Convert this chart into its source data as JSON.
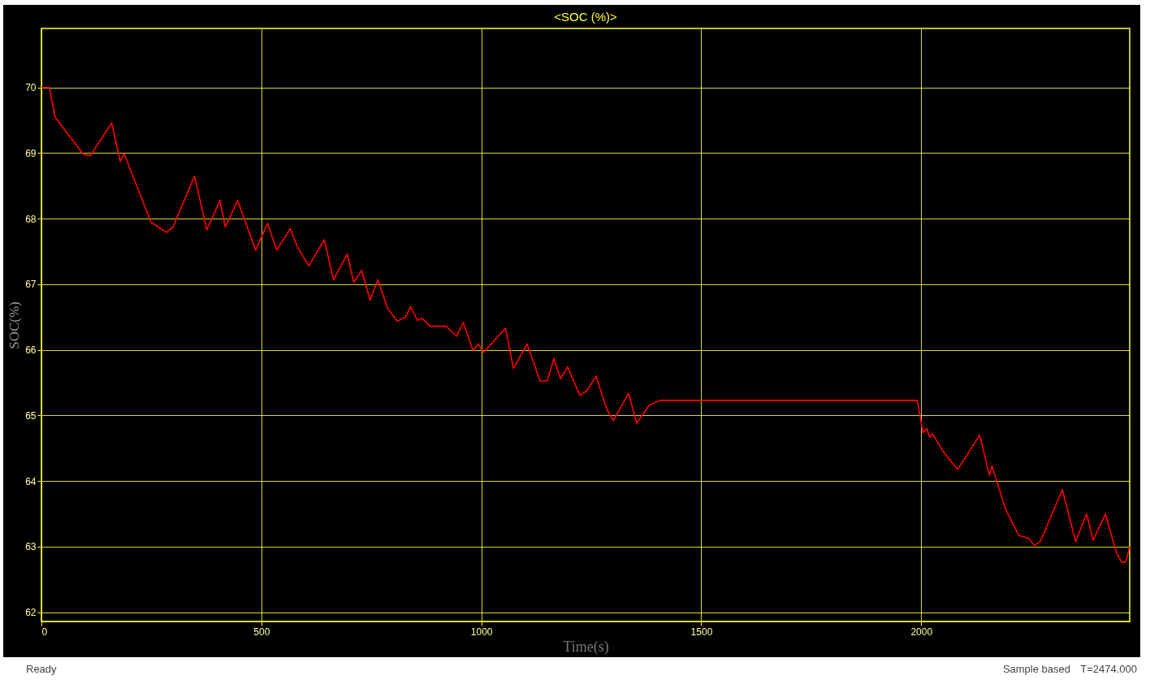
{
  "chart_data": {
    "type": "line",
    "title": "<SOC (%)>",
    "xlabel": "Time(s)",
    "ylabel": "SOC(%)",
    "x": [
      0,
      18,
      31,
      59,
      96,
      111,
      160,
      179,
      188,
      249,
      284,
      299,
      348,
      376,
      406,
      418,
      446,
      487,
      514,
      535,
      566,
      581,
      608,
      643,
      664,
      695,
      710,
      728,
      747,
      765,
      787,
      809,
      828,
      839,
      855,
      866,
      883,
      920,
      944,
      959,
      981,
      993,
      1005,
      1055,
      1073,
      1104,
      1134,
      1150,
      1165,
      1180,
      1196,
      1224,
      1239,
      1261,
      1285,
      1300,
      1335,
      1353,
      1381,
      1405,
      1991,
      2004,
      2013,
      2019,
      2026,
      2050,
      2069,
      2083,
      2133,
      2155,
      2161,
      2192,
      2222,
      2244,
      2257,
      2271,
      2321,
      2351,
      2376,
      2391,
      2419,
      2443,
      2456,
      2465,
      2474
    ],
    "series": [
      {
        "color": "#ff0000",
        "values": [
          70,
          70,
          69.55,
          69.3,
          68.98,
          68.96,
          69.46,
          68.87,
          68.99,
          67.95,
          67.79,
          67.87,
          68.65,
          67.83,
          68.28,
          67.87,
          68.28,
          67.52,
          67.93,
          67.52,
          67.85,
          67.58,
          67.28,
          67.68,
          67.07,
          67.46,
          67.03,
          67.21,
          66.76,
          67.07,
          66.63,
          66.44,
          66.5,
          66.66,
          66.45,
          66.48,
          66.36,
          66.36,
          66.21,
          66.42,
          65.99,
          66.09,
          65.96,
          66.33,
          65.72,
          66.09,
          65.52,
          65.53,
          65.87,
          65.56,
          65.74,
          65.31,
          65.37,
          65.6,
          65.1,
          64.92,
          65.34,
          64.88,
          65.15,
          65.23,
          65.23,
          64.74,
          64.8,
          64.67,
          64.72,
          64.45,
          64.29,
          64.18,
          64.7,
          64.09,
          64.23,
          63.57,
          63.17,
          63.13,
          63.02,
          63.08,
          63.87,
          63.08,
          63.5,
          63.1,
          63.5,
          62.92,
          62.76,
          62.77,
          63.0
        ]
      }
    ],
    "xlim": [
      0,
      2474
    ],
    "xticks": [
      0,
      500,
      1000,
      1500,
      2000
    ],
    "ylim": [
      61.86,
      70.9
    ],
    "yticks": [
      62,
      63,
      64,
      65,
      66,
      67,
      68,
      69,
      70
    ],
    "grid": true,
    "annotations": [
      "Ready",
      "Sample based",
      "T=2474.000"
    ]
  }
}
